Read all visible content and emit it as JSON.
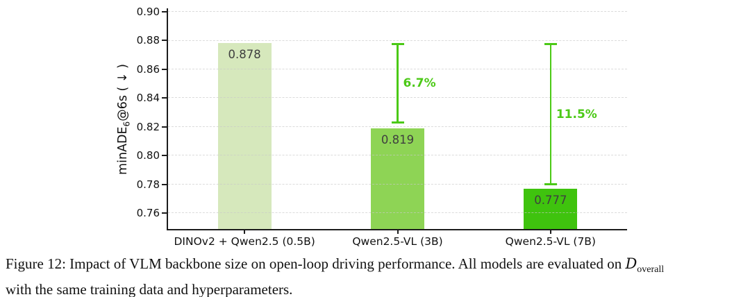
{
  "chart_data": {
    "type": "bar",
    "title": "",
    "ylabel_parts": {
      "prefix": "minADE",
      "sub": "6",
      "suffix": "@6s ( ↓ )"
    },
    "categories": [
      "DINOv2 + Qwen2.5 (0.5B)",
      "Qwen2.5-VL (3B)",
      "Qwen2.5-VL (7B)"
    ],
    "values": [
      0.878,
      0.819,
      0.777
    ],
    "value_labels": [
      "0.878",
      "0.819",
      "0.777"
    ],
    "bar_colors": [
      "#d6e8bc",
      "#8ed455",
      "#3fc30e"
    ],
    "yticks": [
      0.76,
      0.78,
      0.8,
      0.82,
      0.84,
      0.86,
      0.88,
      0.9
    ],
    "ytick_labels": [
      "0.76",
      "0.78",
      "0.80",
      "0.82",
      "0.84",
      "0.86",
      "0.88",
      "0.90"
    ],
    "ylim": [
      0.749,
      0.9023
    ],
    "grid": "horizontal dashed",
    "legend": "none",
    "annotations": [
      {
        "bar_index": 1,
        "label": "6.7%",
        "from_value": 0.878,
        "to_value": 0.8225,
        "color": "#4bc916"
      },
      {
        "bar_index": 2,
        "label": "11.5%",
        "from_value": 0.878,
        "to_value": 0.7795,
        "color": "#4bc916"
      }
    ],
    "axis_color": "#1c1c1c",
    "value_label_color": "#3f3f3f"
  },
  "caption": {
    "line1": "Figure 12: Impact of VLM backbone size on open-loop driving performance. All models are evaluated on ",
    "dataset_symbol": "D",
    "dataset_subscript": "overall",
    "line2": "with the same training data and hyperparameters."
  }
}
